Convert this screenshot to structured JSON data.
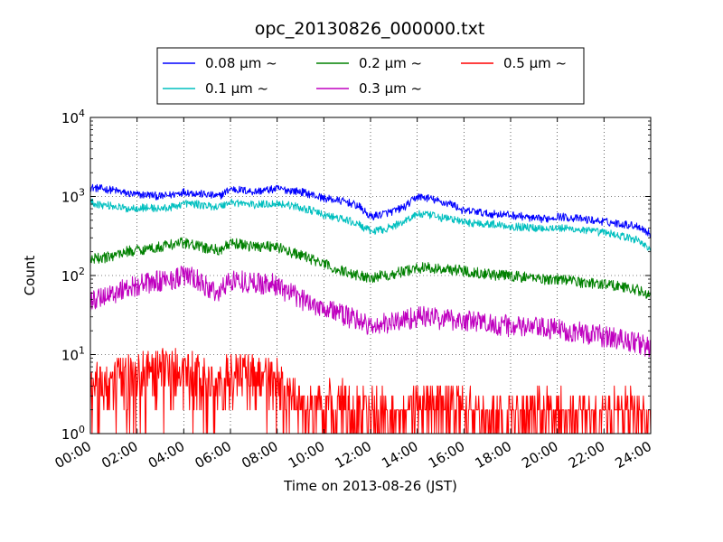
{
  "chart_data": {
    "type": "line",
    "title": "opc_20130826_000000.txt",
    "xlabel": "Time on 2013-08-26 (JST)",
    "ylabel": "Count",
    "y_scale": "log",
    "ylim": [
      1,
      10000
    ],
    "y_ticks": [
      {
        "base": "10",
        "exp": "0",
        "value": 1
      },
      {
        "base": "10",
        "exp": "1",
        "value": 10
      },
      {
        "base": "10",
        "exp": "2",
        "value": 100
      },
      {
        "base": "10",
        "exp": "3",
        "value": 1000
      },
      {
        "base": "10",
        "exp": "4",
        "value": 10000
      }
    ],
    "xlim": [
      0,
      24
    ],
    "x_ticks": [
      {
        "label": "00:00",
        "value": 0
      },
      {
        "label": "02:00",
        "value": 2
      },
      {
        "label": "04:00",
        "value": 4
      },
      {
        "label": "06:00",
        "value": 6
      },
      {
        "label": "08:00",
        "value": 8
      },
      {
        "label": "10:00",
        "value": 10
      },
      {
        "label": "12:00",
        "value": 12
      },
      {
        "label": "14:00",
        "value": 14
      },
      {
        "label": "16:00",
        "value": 16
      },
      {
        "label": "18:00",
        "value": 18
      },
      {
        "label": "20:00",
        "value": 20
      },
      {
        "label": "22:00",
        "value": 22
      },
      {
        "label": "24:00",
        "value": 24
      }
    ],
    "grid": true,
    "legend_position": "top-center",
    "x": [
      0,
      0.5,
      1,
      1.5,
      2,
      2.5,
      3,
      3.5,
      4,
      4.5,
      5,
      5.5,
      6,
      6.5,
      7,
      7.5,
      8,
      8.5,
      9,
      9.5,
      10,
      10.5,
      11,
      11.5,
      12,
      12.5,
      13,
      13.5,
      14,
      14.5,
      15,
      15.5,
      16,
      16.5,
      17,
      17.5,
      18,
      18.5,
      19,
      19.5,
      20,
      20.5,
      21,
      21.5,
      22,
      22.5,
      23,
      23.5,
      24
    ],
    "series": [
      {
        "name": "0.08 μm ~",
        "color": "#0000ff",
        "values": [
          1300,
          1250,
          1200,
          1100,
          1050,
          1050,
          1000,
          1050,
          1150,
          1100,
          1050,
          1000,
          1250,
          1200,
          1150,
          1200,
          1250,
          1200,
          1150,
          1050,
          950,
          900,
          850,
          750,
          550,
          600,
          650,
          750,
          1000,
          950,
          850,
          800,
          650,
          650,
          600,
          600,
          580,
          560,
          520,
          520,
          560,
          540,
          520,
          500,
          480,
          460,
          440,
          420,
          330
        ]
      },
      {
        "name": "0.1 μm ~",
        "color": "#00bfbf",
        "values": [
          850,
          780,
          760,
          700,
          720,
          720,
          700,
          730,
          820,
          800,
          760,
          740,
          850,
          820,
          780,
          800,
          820,
          780,
          720,
          660,
          580,
          540,
          500,
          440,
          360,
          380,
          420,
          500,
          600,
          580,
          540,
          520,
          470,
          460,
          450,
          440,
          420,
          410,
          400,
          400,
          400,
          390,
          380,
          360,
          350,
          330,
          300,
          280,
          210
        ]
      },
      {
        "name": "0.2 μm ~",
        "color": "#008000",
        "values": [
          160,
          165,
          180,
          200,
          210,
          220,
          230,
          250,
          260,
          240,
          220,
          210,
          250,
          250,
          230,
          240,
          230,
          200,
          180,
          160,
          140,
          120,
          110,
          100,
          95,
          100,
          105,
          115,
          125,
          125,
          120,
          120,
          115,
          110,
          105,
          100,
          100,
          95,
          95,
          90,
          90,
          88,
          82,
          80,
          78,
          75,
          70,
          65,
          55
        ]
      },
      {
        "name": "0.3 μm ~",
        "color": "#bf00bf",
        "values": [
          45,
          55,
          60,
          70,
          75,
          80,
          85,
          90,
          100,
          90,
          70,
          60,
          90,
          85,
          80,
          80,
          75,
          60,
          50,
          45,
          40,
          35,
          30,
          28,
          22,
          24,
          26,
          28,
          30,
          30,
          28,
          28,
          27,
          26,
          25,
          24,
          23,
          22,
          22,
          21,
          21,
          20,
          19,
          18,
          17,
          16,
          15,
          14,
          12
        ]
      },
      {
        "name": "0.5 μm ~",
        "color": "#ff0000",
        "values": [
          3,
          4,
          4,
          5,
          5,
          6,
          6,
          6,
          6,
          5,
          4,
          3,
          6,
          5,
          5,
          5,
          4,
          3,
          2,
          2,
          2,
          2,
          2,
          2,
          1.5,
          1.5,
          1.5,
          1.5,
          2,
          2,
          2,
          2,
          1.5,
          1.5,
          1.5,
          1.5,
          1.5,
          1.5,
          1.5,
          1.5,
          1.5,
          1.5,
          1.5,
          1.5,
          1.5,
          1.5,
          1.5,
          1.5,
          1.5
        ]
      }
    ]
  }
}
